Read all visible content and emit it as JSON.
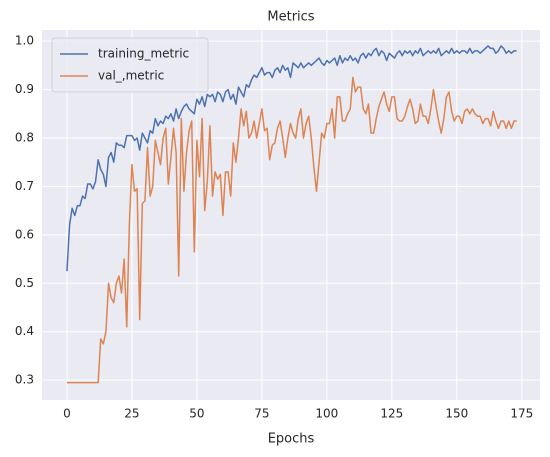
{
  "chart_data": {
    "type": "line",
    "title": "Metrics",
    "xlabel": "Epochs",
    "x": [
      0,
      1,
      2,
      3,
      4,
      5,
      6,
      7,
      8,
      9,
      10,
      11,
      12,
      13,
      14,
      15,
      16,
      17,
      18,
      19,
      20,
      21,
      22,
      23,
      24,
      25,
      26,
      27,
      28,
      29,
      30,
      31,
      32,
      33,
      34,
      35,
      36,
      37,
      38,
      39,
      40,
      41,
      42,
      43,
      44,
      45,
      46,
      47,
      48,
      49,
      50,
      51,
      52,
      53,
      54,
      55,
      56,
      57,
      58,
      59,
      60,
      61,
      62,
      63,
      64,
      65,
      66,
      67,
      68,
      69,
      70,
      71,
      72,
      73,
      74,
      75,
      76,
      77,
      78,
      79,
      80,
      81,
      82,
      83,
      84,
      85,
      86,
      87,
      88,
      89,
      90,
      91,
      92,
      93,
      94,
      95,
      96,
      97,
      98,
      99,
      100,
      101,
      102,
      103,
      104,
      105,
      106,
      107,
      108,
      109,
      110,
      111,
      112,
      113,
      114,
      115,
      116,
      117,
      118,
      119,
      120,
      121,
      122,
      123,
      124,
      125,
      126,
      127,
      128,
      129,
      130,
      131,
      132,
      133,
      134,
      135,
      136,
      137,
      138,
      139,
      140,
      141,
      142,
      143,
      144,
      145,
      146,
      147,
      148,
      149,
      150,
      151,
      152,
      153,
      154,
      155,
      156,
      157,
      158,
      159,
      160,
      161,
      162,
      163,
      164,
      165,
      166,
      167,
      168,
      169,
      170,
      171,
      172,
      173
    ],
    "series": [
      {
        "name": "training_metric",
        "color": "#4c72b0",
        "values": [
          0.525,
          0.62,
          0.655,
          0.64,
          0.66,
          0.66,
          0.68,
          0.675,
          0.705,
          0.705,
          0.695,
          0.71,
          0.755,
          0.735,
          0.725,
          0.7,
          0.76,
          0.77,
          0.75,
          0.79,
          0.785,
          0.785,
          0.78,
          0.805,
          0.805,
          0.805,
          0.795,
          0.8,
          0.775,
          0.81,
          0.8,
          0.79,
          0.815,
          0.81,
          0.84,
          0.825,
          0.835,
          0.83,
          0.845,
          0.84,
          0.85,
          0.835,
          0.86,
          0.84,
          0.855,
          0.865,
          0.87,
          0.86,
          0.855,
          0.85,
          0.88,
          0.87,
          0.885,
          0.865,
          0.89,
          0.885,
          0.89,
          0.875,
          0.895,
          0.89,
          0.875,
          0.895,
          0.9,
          0.88,
          0.89,
          0.87,
          0.905,
          0.895,
          0.885,
          0.91,
          0.905,
          0.92,
          0.93,
          0.925,
          0.935,
          0.945,
          0.93,
          0.935,
          0.935,
          0.925,
          0.94,
          0.945,
          0.935,
          0.95,
          0.94,
          0.945,
          0.925,
          0.955,
          0.95,
          0.945,
          0.955,
          0.945,
          0.95,
          0.955,
          0.95,
          0.955,
          0.96,
          0.965,
          0.955,
          0.95,
          0.96,
          0.955,
          0.96,
          0.965,
          0.95,
          0.97,
          0.955,
          0.965,
          0.96,
          0.97,
          0.96,
          0.965,
          0.955,
          0.97,
          0.975,
          0.965,
          0.975,
          0.97,
          0.98,
          0.985,
          0.97,
          0.98,
          0.975,
          0.96,
          0.975,
          0.97,
          0.965,
          0.975,
          0.98,
          0.97,
          0.98,
          0.975,
          0.98,
          0.97,
          0.98,
          0.975,
          0.985,
          0.97,
          0.975,
          0.98,
          0.975,
          0.98,
          0.975,
          0.985,
          0.97,
          0.975,
          0.98,
          0.975,
          0.985,
          0.975,
          0.98,
          0.975,
          0.98,
          0.98,
          0.975,
          0.985,
          0.975,
          0.98,
          0.98,
          0.975,
          0.98,
          0.985,
          0.99,
          0.985,
          0.985,
          0.975,
          0.98,
          0.99,
          0.985,
          0.975,
          0.98,
          0.975,
          0.98,
          0.98
        ]
      },
      {
        "name": "val_,metric",
        "color": "#dd8452",
        "values": [
          0.295,
          0.295,
          0.295,
          0.295,
          0.295,
          0.295,
          0.295,
          0.295,
          0.295,
          0.295,
          0.295,
          0.295,
          0.295,
          0.385,
          0.375,
          0.4,
          0.5,
          0.47,
          0.46,
          0.5,
          0.515,
          0.48,
          0.55,
          0.41,
          0.62,
          0.745,
          0.69,
          0.695,
          0.425,
          0.665,
          0.67,
          0.78,
          0.68,
          0.7,
          0.795,
          0.77,
          0.745,
          0.8,
          0.82,
          0.705,
          0.76,
          0.82,
          0.77,
          0.515,
          0.84,
          0.69,
          0.77,
          0.815,
          0.835,
          0.565,
          0.795,
          0.72,
          0.84,
          0.65,
          0.71,
          0.825,
          0.68,
          0.73,
          0.715,
          0.725,
          0.64,
          0.73,
          0.73,
          0.68,
          0.79,
          0.75,
          0.8,
          0.86,
          0.825,
          0.855,
          0.8,
          0.81,
          0.835,
          0.8,
          0.83,
          0.86,
          0.815,
          0.82,
          0.755,
          0.785,
          0.79,
          0.82,
          0.835,
          0.8,
          0.76,
          0.8,
          0.83,
          0.81,
          0.8,
          0.84,
          0.86,
          0.8,
          0.83,
          0.845,
          0.8,
          0.74,
          0.69,
          0.75,
          0.81,
          0.8,
          0.83,
          0.83,
          0.86,
          0.8,
          0.885,
          0.885,
          0.835,
          0.835,
          0.85,
          0.86,
          0.925,
          0.895,
          0.905,
          0.905,
          0.86,
          0.85,
          0.87,
          0.81,
          0.81,
          0.84,
          0.865,
          0.88,
          0.895,
          0.87,
          0.855,
          0.885,
          0.885,
          0.84,
          0.835,
          0.835,
          0.845,
          0.865,
          0.88,
          0.86,
          0.83,
          0.835,
          0.87,
          0.845,
          0.845,
          0.83,
          0.86,
          0.9,
          0.865,
          0.835,
          0.81,
          0.84,
          0.885,
          0.895,
          0.855,
          0.835,
          0.845,
          0.845,
          0.83,
          0.855,
          0.86,
          0.85,
          0.86,
          0.85,
          0.845,
          0.845,
          0.83,
          0.84,
          0.84,
          0.825,
          0.855,
          0.835,
          0.82,
          0.835,
          0.835,
          0.82,
          0.835,
          0.82,
          0.835,
          0.835
        ]
      }
    ],
    "xlim": [
      -9.6,
      182
    ],
    "ylim": [
      0.259,
      1.023
    ],
    "xticks": [
      0,
      25,
      50,
      75,
      100,
      125,
      150,
      175
    ],
    "yticks": [
      {
        "value": 0.3,
        "label": "0.3"
      },
      {
        "value": 0.4,
        "label": "0.4"
      },
      {
        "value": 0.5,
        "label": "0.5"
      },
      {
        "value": 0.6,
        "label": "0.6"
      },
      {
        "value": 0.7,
        "label": "0.7"
      },
      {
        "value": 0.8,
        "label": "0.8"
      },
      {
        "value": 0.9,
        "label": "0.9"
      },
      {
        "value": 1.0,
        "label": "1.0"
      }
    ],
    "grid": true,
    "legend": "upper left"
  }
}
